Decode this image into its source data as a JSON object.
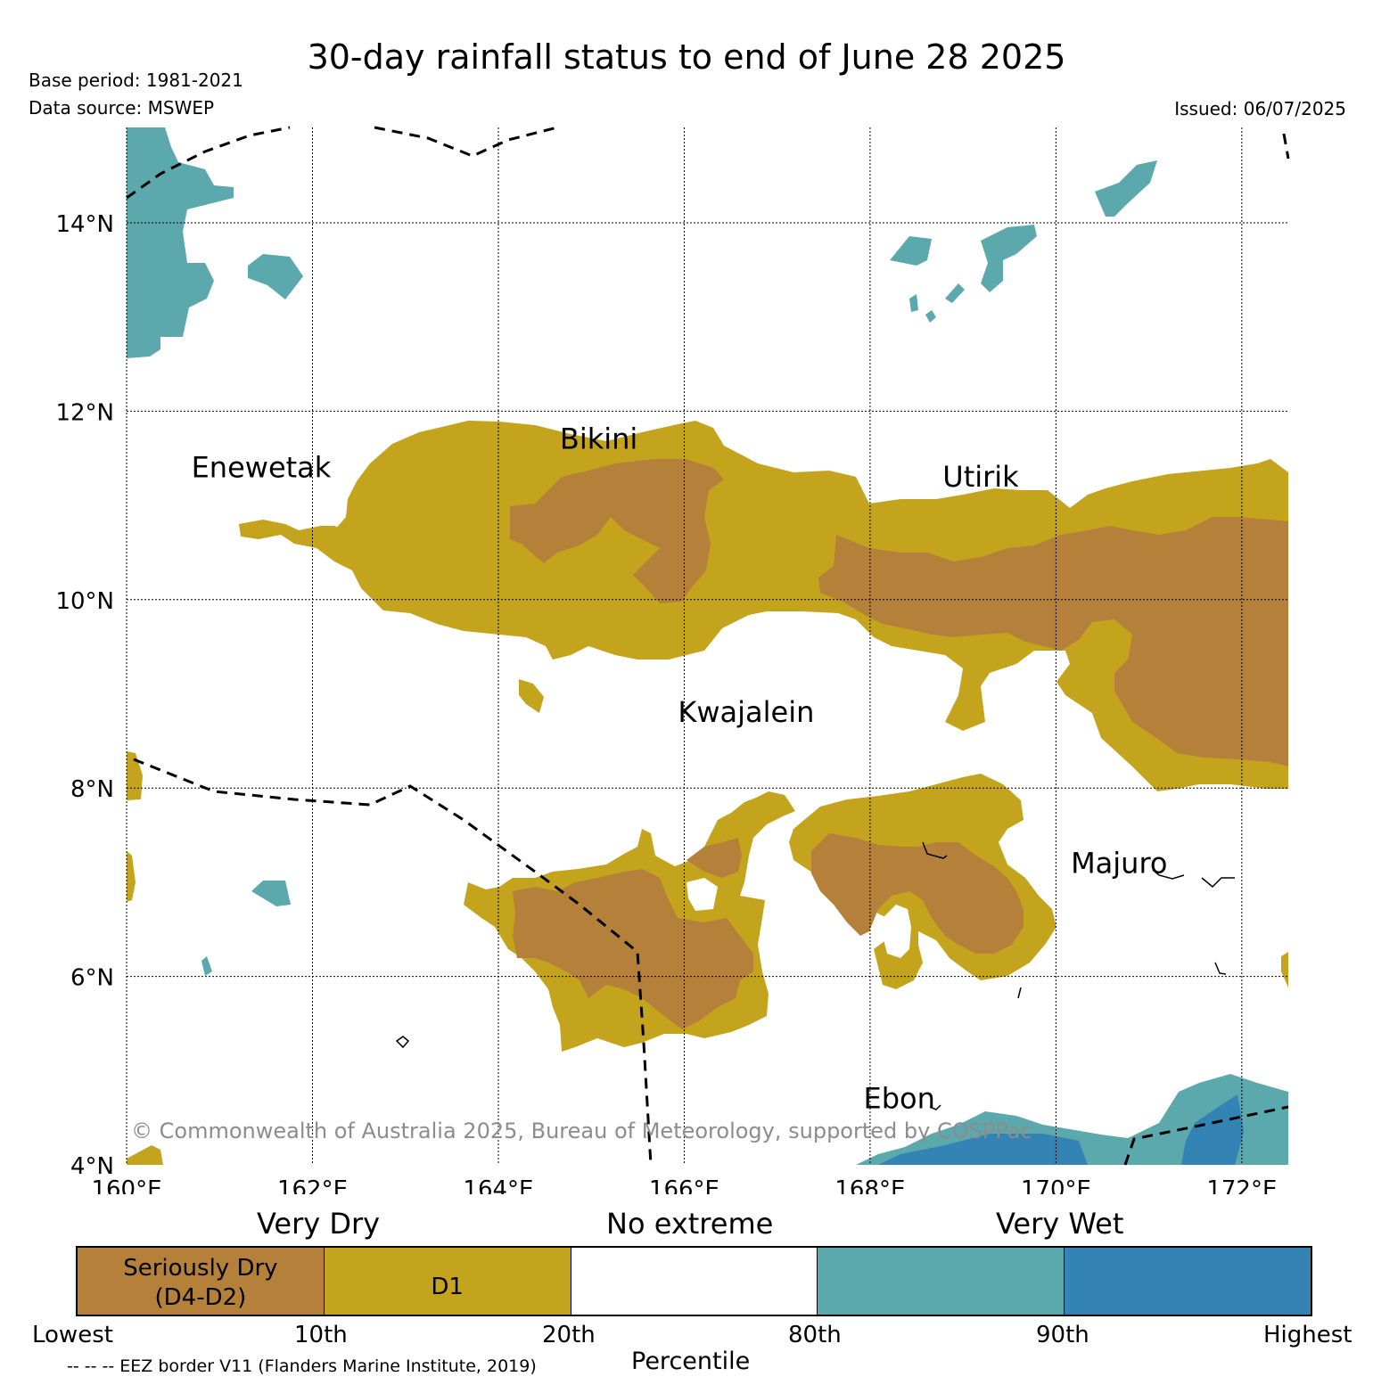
{
  "title": "30-day rainfall status to end of June 28 2025",
  "base_period": "Base period: 1981-2021",
  "data_source": "Data source: MSWEP",
  "issued": "Issued: 06/07/2025",
  "map": {
    "lon_range": [
      160,
      172.5
    ],
    "lat_range": [
      4,
      15
    ],
    "lon_ticks": [
      "160°E",
      "162°E",
      "164°E",
      "166°E",
      "168°E",
      "170°E",
      "172°E"
    ],
    "lat_ticks": [
      "4°N",
      "6°N",
      "8°N",
      "10°N",
      "12°N",
      "14°N"
    ],
    "places": [
      {
        "name": "Enewetak",
        "lon": 162.2,
        "lat": 11.3
      },
      {
        "name": "Bikini",
        "lon": 165.5,
        "lat": 11.6
      },
      {
        "name": "Utirik",
        "lon": 169.6,
        "lat": 11.2
      },
      {
        "name": "Kwajalein",
        "lon": 167.4,
        "lat": 8.7
      },
      {
        "name": "Majuro",
        "lon": 171.2,
        "lat": 7.1
      },
      {
        "name": "Ebon",
        "lon": 168.7,
        "lat": 4.6
      }
    ],
    "copyright": "© Commonwealth of Australia 2025, Bureau of Meteorology, supported by COSPPac",
    "colors": {
      "seriously_dry": "#b5803a",
      "d1": "#c4a41d",
      "no_extreme": "#ffffff",
      "very_wet_80_90": "#5ba8ad",
      "very_wet_90_plus": "#3383b4"
    }
  },
  "legend": {
    "categories": [
      "Very Dry",
      "No extreme",
      "Very Wet"
    ],
    "segments": [
      {
        "label_line1": "Seriously Dry",
        "label_line2": "(D4-D2)",
        "color": "#b5803a"
      },
      {
        "label_line1": "D1",
        "label_line2": "",
        "color": "#c4a41d"
      },
      {
        "label_line1": "",
        "label_line2": "",
        "color": "#ffffff"
      },
      {
        "label_line1": "",
        "label_line2": "",
        "color": "#5ba8ad"
      },
      {
        "label_line1": "",
        "label_line2": "",
        "color": "#3383b4"
      }
    ],
    "tick_labels": [
      "Lowest",
      "10th",
      "20th",
      "80th",
      "90th",
      "Highest"
    ],
    "axis_label": "Percentile",
    "eez_note": "-- -- -- EEZ border V11 (Flanders Marine Institute, 2019)"
  }
}
